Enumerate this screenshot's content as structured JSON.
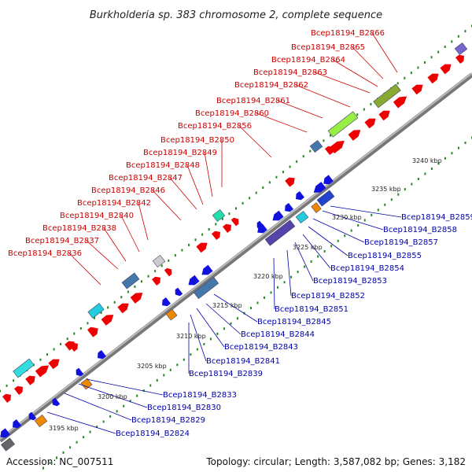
{
  "title": "Burkholderia sp. 383 chromosome 2, complete sequence",
  "accession": "Accession: NC_007511",
  "topology": "Topology: circular; Length: 3,587,082 bp; Genes: 3,182",
  "colors": {
    "forward_cds": "#ee0000",
    "reverse_cds": "#1111dd",
    "backbone": "#999999",
    "ticks": "#228822",
    "label_forward": "#cc0000",
    "label_reverse": "#0000aa"
  },
  "scale_labels": [
    "3195 kbp",
    "3200 kbp",
    "3205 kbp",
    "3210 kbp",
    "3215 kbp",
    "3220 kbp",
    "3225 kbp",
    "3230 kbp",
    "3235 kbp",
    "3240 kbp"
  ],
  "forward_genes": [
    "Bcep18194_B2836",
    "Bcep18194_B2837",
    "Bcep18194_B2838",
    "Bcep18194_B2840",
    "Bcep18194_B2842",
    "Bcep18194_B2846",
    "Bcep18194_B2847",
    "Bcep18194_B2848",
    "Bcep18194_B2849",
    "Bcep18194_B2850",
    "Bcep18194_B2856",
    "Bcep18194_B2860",
    "Bcep18194_B2861",
    "Bcep18194_B2862",
    "Bcep18194_B2863",
    "Bcep18194_B2864",
    "Bcep18194_B2865",
    "Bcep18194_B2866"
  ],
  "reverse_genes": [
    "Bcep18194_B2859",
    "Bcep18194_B2858",
    "Bcep18194_B2857",
    "Bcep18194_B2855",
    "Bcep18194_B2854",
    "Bcep18194_B2853",
    "Bcep18194_B2852",
    "Bcep18194_B2851",
    "Bcep18194_B2845",
    "Bcep18194_B2844",
    "Bcep18194_B2843",
    "Bcep18194_B2841",
    "Bcep18194_B2839",
    "Bcep18194_B2833",
    "Bcep18194_B2830",
    "Bcep18194_B2829",
    "Bcep18194_B2824"
  ]
}
